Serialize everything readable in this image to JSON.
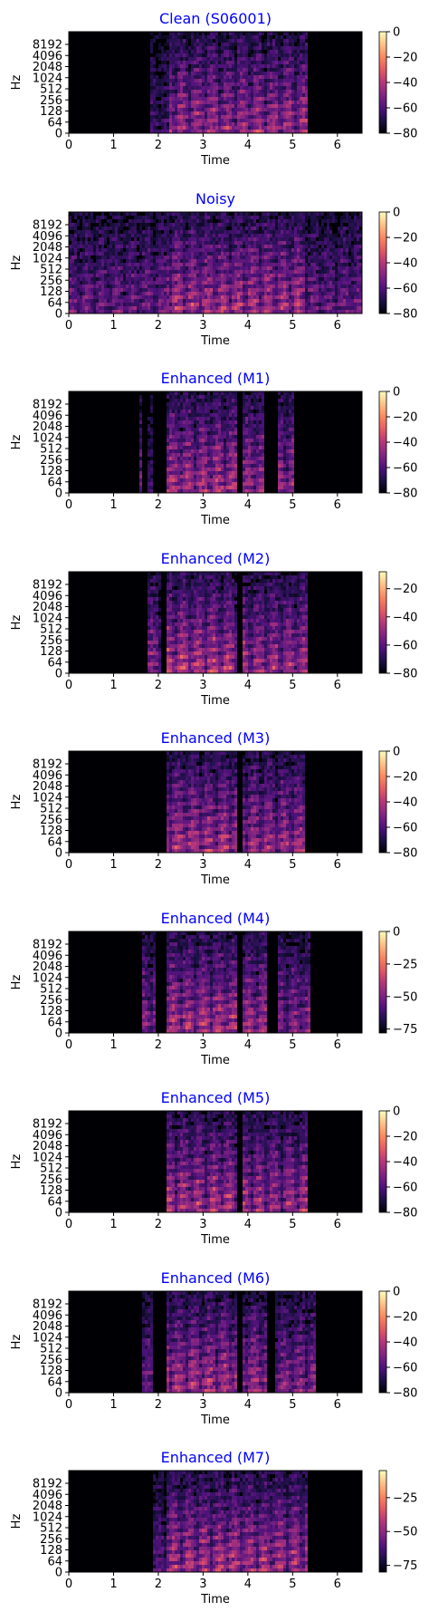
{
  "figure": {
    "title_color": "#0000ff",
    "colormap": [
      "#000004",
      "#1c1044",
      "#4f127b",
      "#812581",
      "#b5367a",
      "#e55964",
      "#fb8761",
      "#fec287",
      "#fcfdbf"
    ]
  },
  "chart_data": [
    {
      "type": "heatmap",
      "title": "Clean (S06001)",
      "xlabel": "Time",
      "ylabel": "Hz",
      "xlim": [
        0,
        6.55
      ],
      "x_ticks": [
        "0",
        "1",
        "2",
        "3",
        "4",
        "5",
        "6"
      ],
      "y_ticks": [
        "0",
        "64",
        "128",
        "256",
        "512",
        "1024",
        "2048",
        "4096",
        "8192"
      ],
      "colorbar_ticks": [
        "0",
        "-20",
        "-40",
        "-60",
        "-80"
      ],
      "colorbar_range": [
        -80,
        0
      ],
      "active_segments": [
        [
          1.8,
          2.25,
          0.35
        ],
        [
          2.25,
          5.35,
          0.75
        ]
      ]
    },
    {
      "type": "heatmap",
      "title": "Noisy",
      "xlabel": "Time",
      "ylabel": "Hz",
      "xlim": [
        0,
        6.55
      ],
      "x_ticks": [
        "0",
        "1",
        "2",
        "3",
        "4",
        "5",
        "6"
      ],
      "y_ticks": [
        "0",
        "64",
        "128",
        "256",
        "512",
        "1024",
        "2048",
        "4096",
        "8192"
      ],
      "colorbar_ticks": [
        "0",
        "-20",
        "-40",
        "-60",
        "-80"
      ],
      "colorbar_range": [
        -80,
        0
      ],
      "active_segments": [
        [
          0.0,
          6.55,
          0.55
        ],
        [
          2.2,
          5.3,
          0.8
        ]
      ]
    },
    {
      "type": "heatmap",
      "title": "Enhanced (M1)",
      "xlabel": "Time",
      "ylabel": "Hz",
      "xlim": [
        0,
        6.55
      ],
      "x_ticks": [
        "0",
        "1",
        "2",
        "3",
        "4",
        "5",
        "6"
      ],
      "y_ticks": [
        "0",
        "64",
        "128",
        "256",
        "512",
        "1024",
        "2048",
        "4096",
        "8192"
      ],
      "colorbar_ticks": [
        "0",
        "-20",
        "-40",
        "-60",
        "-80"
      ],
      "colorbar_range": [
        -80,
        0
      ],
      "active_segments": [
        [
          1.55,
          1.62,
          0.5
        ],
        [
          1.75,
          1.85,
          0.45
        ],
        [
          2.2,
          3.75,
          0.8
        ],
        [
          3.9,
          4.35,
          0.75
        ],
        [
          4.65,
          5.05,
          0.7
        ]
      ]
    },
    {
      "type": "heatmap",
      "title": "Enhanced (M2)",
      "xlabel": "Time",
      "ylabel": "Hz",
      "xlim": [
        0,
        6.55
      ],
      "x_ticks": [
        "0",
        "1",
        "2",
        "3",
        "4",
        "5",
        "6"
      ],
      "y_ticks": [
        "0",
        "64",
        "128",
        "256",
        "512",
        "1024",
        "2048",
        "4096",
        "8192"
      ],
      "colorbar_ticks": [
        "-20",
        "-40",
        "-60",
        "-80"
      ],
      "colorbar_range": [
        -80,
        -8
      ],
      "active_segments": [
        [
          1.75,
          2.05,
          0.65
        ],
        [
          2.2,
          3.75,
          0.85
        ],
        [
          3.9,
          5.35,
          0.75
        ]
      ]
    },
    {
      "type": "heatmap",
      "title": "Enhanced (M3)",
      "xlabel": "Time",
      "ylabel": "Hz",
      "xlim": [
        0,
        6.55
      ],
      "x_ticks": [
        "0",
        "1",
        "2",
        "3",
        "4",
        "5",
        "6"
      ],
      "y_ticks": [
        "0",
        "64",
        "128",
        "256",
        "512",
        "1024",
        "2048",
        "4096",
        "8192"
      ],
      "colorbar_ticks": [
        "0",
        "-20",
        "-40",
        "-60",
        "-80"
      ],
      "colorbar_range": [
        -80,
        0
      ],
      "active_segments": [
        [
          2.2,
          3.75,
          0.8
        ],
        [
          3.9,
          5.3,
          0.75
        ]
      ]
    },
    {
      "type": "heatmap",
      "title": "Enhanced (M4)",
      "xlabel": "Time",
      "ylabel": "Hz",
      "xlim": [
        0,
        6.55
      ],
      "x_ticks": [
        "0",
        "1",
        "2",
        "3",
        "4",
        "5",
        "6"
      ],
      "y_ticks": [
        "0",
        "64",
        "128",
        "256",
        "512",
        "1024",
        "2048",
        "4096",
        "8192"
      ],
      "colorbar_ticks": [
        "0",
        "-25",
        "-50",
        "-75"
      ],
      "colorbar_range": [
        -78,
        0
      ],
      "active_segments": [
        [
          1.65,
          1.95,
          0.65
        ],
        [
          2.2,
          3.75,
          0.8
        ],
        [
          3.9,
          4.45,
          0.75
        ],
        [
          4.65,
          5.4,
          0.65
        ]
      ]
    },
    {
      "type": "heatmap",
      "title": "Enhanced (M5)",
      "xlabel": "Time",
      "ylabel": "Hz",
      "xlim": [
        0,
        6.55
      ],
      "x_ticks": [
        "0",
        "1",
        "2",
        "3",
        "4",
        "5",
        "6"
      ],
      "y_ticks": [
        "0",
        "64",
        "128",
        "256",
        "512",
        "1024",
        "2048",
        "4096",
        "8192"
      ],
      "colorbar_ticks": [
        "0",
        "-20",
        "-40",
        "-60",
        "-80"
      ],
      "colorbar_range": [
        -80,
        0
      ],
      "active_segments": [
        [
          2.2,
          3.75,
          0.8
        ],
        [
          3.9,
          5.35,
          0.75
        ]
      ]
    },
    {
      "type": "heatmap",
      "title": "Enhanced (M6)",
      "xlabel": "Time",
      "ylabel": "Hz",
      "xlim": [
        0,
        6.55
      ],
      "x_ticks": [
        "0",
        "1",
        "2",
        "3",
        "4",
        "5",
        "6"
      ],
      "y_ticks": [
        "0",
        "64",
        "128",
        "256",
        "512",
        "1024",
        "2048",
        "4096",
        "8192"
      ],
      "colorbar_ticks": [
        "0",
        "-20",
        "-40",
        "-60",
        "-80"
      ],
      "colorbar_range": [
        -80,
        0
      ],
      "active_segments": [
        [
          1.65,
          1.85,
          0.55
        ],
        [
          2.2,
          3.75,
          0.8
        ],
        [
          3.9,
          4.4,
          0.75
        ],
        [
          4.6,
          5.5,
          0.65
        ]
      ]
    },
    {
      "type": "heatmap",
      "title": "Enhanced (M7)",
      "xlabel": "Time",
      "ylabel": "Hz",
      "xlim": [
        0,
        6.55
      ],
      "x_ticks": [
        "0",
        "1",
        "2",
        "3",
        "4",
        "5",
        "6"
      ],
      "y_ticks": [
        "0",
        "64",
        "128",
        "256",
        "512",
        "1024",
        "2048",
        "4096",
        "8192"
      ],
      "colorbar_ticks": [
        "-25",
        "-50",
        "-75"
      ],
      "colorbar_range": [
        -80,
        -5
      ],
      "active_segments": [
        [
          1.85,
          2.2,
          0.45
        ],
        [
          2.2,
          5.35,
          0.8
        ]
      ]
    }
  ]
}
